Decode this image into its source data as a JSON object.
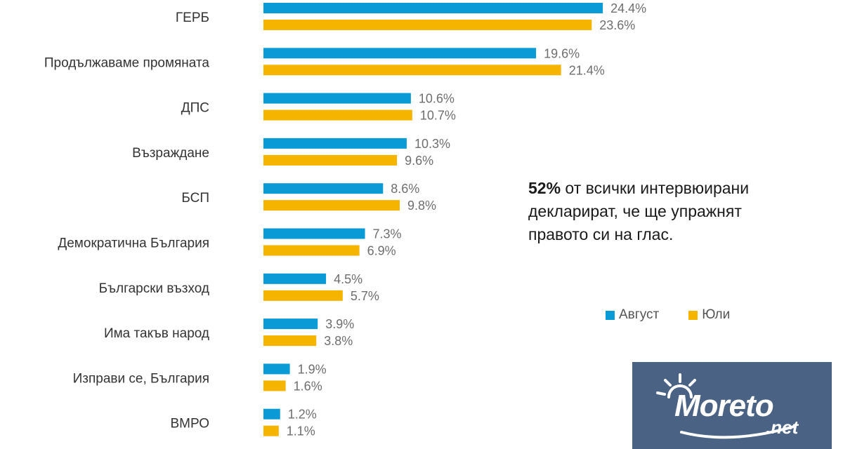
{
  "chart_data": {
    "type": "bar",
    "orientation": "horizontal",
    "categories": [
      "ГЕРБ",
      "Продължаваме промяната",
      "ДПС",
      "Възраждане",
      "БСП",
      "Демократична България",
      "Български възход",
      "Има такъв народ",
      "Изправи се, България",
      "ВМРО"
    ],
    "series": [
      {
        "name": "Август",
        "color": "#0a9ad6",
        "values": [
          24.4,
          19.6,
          10.6,
          10.3,
          8.6,
          7.3,
          4.5,
          3.9,
          1.9,
          1.2
        ],
        "labels": [
          "24.4%",
          "19.6%",
          "10.6%",
          "10.3%",
          "8.6%",
          "7.3%",
          "4.5%",
          "3.9%",
          "1.9%",
          "1.2%"
        ]
      },
      {
        "name": "Юли",
        "color": "#f5b400",
        "values": [
          23.6,
          21.4,
          10.7,
          9.6,
          9.8,
          6.9,
          5.7,
          3.8,
          1.6,
          1.1
        ],
        "labels": [
          "23.6%",
          "21.4%",
          "10.7%",
          "9.6%",
          "9.8%",
          "6.9%",
          "5.7%",
          "3.8%",
          "1.6%",
          "1.1%"
        ]
      }
    ],
    "legend_position": "right",
    "grid": false
  },
  "note": {
    "highlight": "52%",
    "text": " от всички интервюирани декларират, че ще упражнят правото си на глас."
  },
  "logo": {
    "text": "Moreto",
    "sub": ".net"
  }
}
